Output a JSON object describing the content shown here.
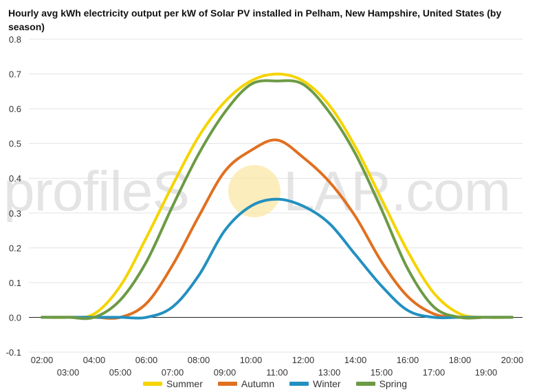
{
  "title": "Hourly avg kWh electricity output per kW of Solar PV installed in Pelham, New Hampshire, United States (by season)",
  "watermark": {
    "text_left": "profileS",
    "text_right": "LAR.com",
    "sun_color": "#fbe6a0"
  },
  "chart_data": {
    "type": "line",
    "title": "Hourly avg kWh electricity output per kW of Solar PV installed in Pelham, New Hampshire, United States (by season)",
    "x": [
      "02:00",
      "03:00",
      "04:00",
      "05:00",
      "06:00",
      "07:00",
      "08:00",
      "09:00",
      "10:00",
      "11:00",
      "12:00",
      "13:00",
      "14:00",
      "15:00",
      "16:00",
      "17:00",
      "18:00",
      "19:00",
      "20:00"
    ],
    "x_tick_labels_top": [
      "02:00",
      "04:00",
      "06:00",
      "08:00",
      "10:00",
      "12:00",
      "14:00",
      "16:00",
      "18:00",
      "20:00"
    ],
    "x_tick_labels_bottom": [
      "03:00",
      "05:00",
      "07:00",
      "09:00",
      "11:00",
      "13:00",
      "15:00",
      "17:00",
      "19:00"
    ],
    "y_ticks": [
      "0.8",
      "0.7",
      "0.6",
      "0.5",
      "0.4",
      "0.3",
      "0.2",
      "0.1",
      "0.0",
      "-0.1"
    ],
    "ylim": [
      -0.1,
      0.8
    ],
    "grid": true,
    "legend_position": "bottom",
    "series": [
      {
        "name": "Summer",
        "color": "#f5d400",
        "values": [
          0,
          0,
          0.01,
          0.09,
          0.23,
          0.38,
          0.52,
          0.62,
          0.68,
          0.7,
          0.68,
          0.61,
          0.49,
          0.34,
          0.19,
          0.07,
          0.01,
          0,
          0
        ]
      },
      {
        "name": "Autumn",
        "color": "#e07020",
        "values": [
          0,
          0,
          0,
          0,
          0.04,
          0.15,
          0.29,
          0.42,
          0.48,
          0.51,
          0.46,
          0.39,
          0.29,
          0.16,
          0.06,
          0.01,
          0,
          0,
          0
        ]
      },
      {
        "name": "Winter",
        "color": "#2390c0",
        "values": [
          0,
          0,
          0,
          0,
          0,
          0.03,
          0.12,
          0.25,
          0.32,
          0.34,
          0.32,
          0.27,
          0.18,
          0.09,
          0.02,
          0,
          0,
          0,
          0
        ]
      },
      {
        "name": "Spring",
        "color": "#6c9a45",
        "values": [
          0,
          0,
          0,
          0.05,
          0.16,
          0.32,
          0.47,
          0.59,
          0.67,
          0.68,
          0.67,
          0.59,
          0.47,
          0.31,
          0.14,
          0.03,
          0,
          0,
          0
        ]
      }
    ]
  }
}
